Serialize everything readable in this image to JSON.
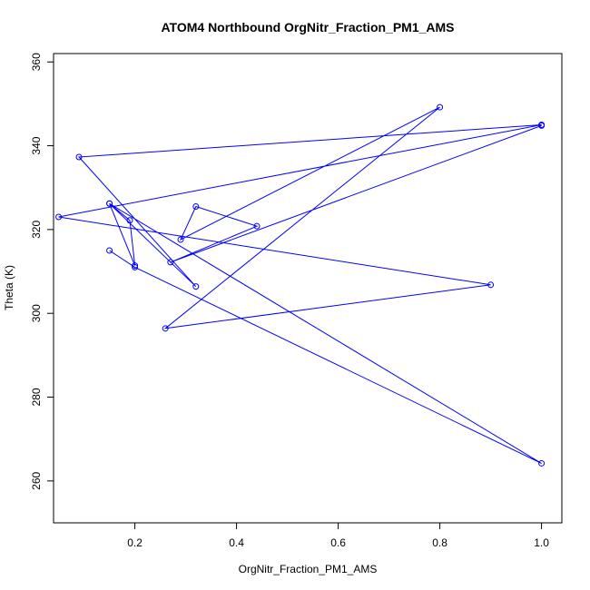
{
  "chart_data": {
    "type": "line",
    "title": "ATOM4 Northbound OrgNitr_Fraction_PM1_AMS",
    "xlabel": "OrgNitr_Fraction_PM1_AMS",
    "ylabel": "Theta (K)",
    "xlim": [
      0.04,
      1.04
    ],
    "ylim": [
      250,
      362
    ],
    "xticks": [
      0.2,
      0.4,
      0.6,
      0.8,
      1.0
    ],
    "xtick_labels": [
      "0.2",
      "0.4",
      "0.6",
      "0.8",
      "1.0"
    ],
    "yticks": [
      260,
      280,
      300,
      320,
      340,
      360
    ],
    "ytick_labels": [
      "260",
      "280",
      "300",
      "320",
      "340",
      "360"
    ],
    "grid": false,
    "series": [
      {
        "color": "#0000ff",
        "x": [
          0.15,
          0.2,
          1.0,
          0.15,
          0.19,
          0.2,
          0.15,
          0.32,
          0.09,
          1.0,
          0.05,
          0.9,
          0.26,
          0.8,
          0.29,
          0.32,
          0.44,
          0.27,
          1.0
        ],
        "y": [
          315.0,
          311.0,
          264.2,
          326.2,
          322.2,
          311.4,
          326.2,
          306.4,
          337.3,
          345.0,
          323.0,
          306.8,
          296.4,
          349.2,
          317.6,
          325.5,
          320.8,
          312.2,
          344.8
        ]
      }
    ]
  }
}
